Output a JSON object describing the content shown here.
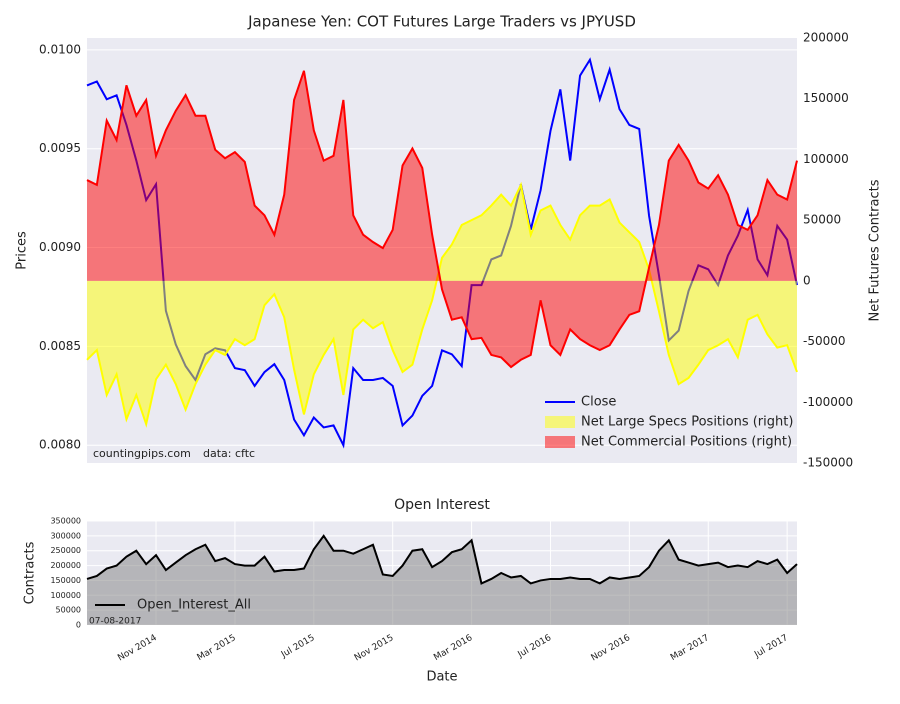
{
  "chart_data": [
    {
      "type": "line",
      "title": "Japanese Yen: COT Futures Large Traders vs JPYUSD",
      "ylabel": "Prices",
      "y2label": "Net Futures Contracts",
      "ylim": [
        0.00791,
        0.01006
      ],
      "yticks": [
        {
          "value": 0.008,
          "label": "0.0080"
        },
        0.0085,
        {
          "value": 0.009,
          "label": "0.0090"
        },
        0.0095,
        {
          "value": 0.01,
          "label": "0.0100"
        }
      ],
      "y2lim": [
        -150000,
        200000
      ],
      "y2ticks": [
        -150000,
        -100000,
        -50000,
        0,
        50000,
        100000,
        150000,
        200000
      ],
      "grid": true,
      "legend": "lower right",
      "annotations": [
        "countingpips.com",
        "data: cftc"
      ],
      "series": [
        {
          "name": "Close",
          "color": "#0000ff",
          "axis": "y",
          "values": [
            0.00982,
            0.00984,
            0.00975,
            0.00977,
            0.00962,
            0.00944,
            0.00924,
            0.00932,
            0.00868,
            0.00851,
            0.0084,
            0.00833,
            0.00846,
            0.00849,
            0.00848,
            0.00839,
            0.00838,
            0.0083,
            0.00837,
            0.00841,
            0.00833,
            0.00813,
            0.00805,
            0.00814,
            0.00809,
            0.0081,
            0.008,
            0.00839,
            0.00833,
            0.00833,
            0.00834,
            0.0083,
            0.0081,
            0.00815,
            0.00825,
            0.0083,
            0.00848,
            0.00846,
            0.0084,
            0.00881,
            0.00881,
            0.00894,
            0.00896,
            0.00911,
            0.00932,
            0.00909,
            0.00929,
            0.00959,
            0.0098,
            0.00944,
            0.00987,
            0.00995,
            0.00975,
            0.0099,
            0.0097,
            0.00962,
            0.0096,
            0.00916,
            0.00886,
            0.00853,
            0.00858,
            0.00878,
            0.00891,
            0.00889,
            0.00881,
            0.00896,
            0.00906,
            0.00919,
            0.00894,
            0.00886,
            0.00911,
            0.00904,
            0.00881
          ]
        },
        {
          "name": "Net Large Specs Positions (right)",
          "color": "#ffff00",
          "fill_color": "#ffff00",
          "axis": "y2",
          "values": [
            -65000,
            -57000,
            -94000,
            -77000,
            -114000,
            -94000,
            -118000,
            -81000,
            -69000,
            -85000,
            -106000,
            -85000,
            -69000,
            -57000,
            -61000,
            -48000,
            -53000,
            -48000,
            -20000,
            -11000,
            -30000,
            -73000,
            -110000,
            -77000,
            -61000,
            -48000,
            -94000,
            -40000,
            -32000,
            -39000,
            -34000,
            -57000,
            -75000,
            -69000,
            -40000,
            -16000,
            19000,
            30000,
            46000,
            50000,
            54000,
            62000,
            71000,
            62000,
            79000,
            38000,
            58000,
            62000,
            46000,
            34000,
            54000,
            62000,
            62000,
            67000,
            48000,
            40000,
            32000,
            9000,
            -25000,
            -61000,
            -85000,
            -80000,
            -69000,
            -57000,
            -53000,
            -48000,
            -63000,
            -32000,
            -28000,
            -44000,
            -55000,
            -53000,
            -75000
          ]
        },
        {
          "name": "Net Commercial Positions (right)",
          "color": "#ff0000",
          "fill_color": "#ff0000",
          "axis": "y2",
          "values": [
            83000,
            79000,
            132000,
            116000,
            161000,
            136000,
            149000,
            103000,
            124000,
            140000,
            153000,
            136000,
            136000,
            108000,
            101000,
            106000,
            98000,
            62000,
            54000,
            38000,
            71000,
            149000,
            173000,
            124000,
            99000,
            103000,
            149000,
            54000,
            38000,
            32000,
            27000,
            42000,
            95000,
            109000,
            93000,
            38000,
            -7000,
            -32000,
            -30000,
            -48000,
            -47000,
            -61000,
            -63000,
            -71000,
            -65000,
            -61000,
            -16000,
            -53000,
            -61000,
            -40000,
            -48000,
            -53000,
            -57000,
            -53000,
            -40000,
            -28000,
            -25000,
            11000,
            46000,
            99000,
            112000,
            99000,
            81000,
            76000,
            87000,
            71000,
            46000,
            42000,
            54000,
            83000,
            71000,
            67000,
            99000
          ]
        }
      ]
    },
    {
      "type": "area",
      "title": "Open Interest",
      "ylabel": "Contracts",
      "xlabel": "Date",
      "ylim": [
        0,
        350000
      ],
      "yticks": [
        0,
        50000,
        100000,
        150000,
        200000,
        250000,
        300000,
        350000
      ],
      "grid": true,
      "legend": "lower left",
      "annotations": [
        "07-08-2017"
      ],
      "categories": [
        null,
        null,
        null,
        null,
        null,
        null,
        null,
        "Nov 2014",
        null,
        null,
        null,
        null,
        null,
        null,
        null,
        "Mar 2015",
        null,
        null,
        null,
        null,
        null,
        null,
        null,
        "Jul 2015",
        null,
        null,
        null,
        null,
        null,
        null,
        null,
        "Nov 2015",
        null,
        null,
        null,
        null,
        null,
        null,
        null,
        "Mar 2016",
        null,
        null,
        null,
        null,
        null,
        null,
        null,
        "Jul 2016",
        null,
        null,
        null,
        null,
        null,
        null,
        null,
        "Nov 2016",
        null,
        null,
        null,
        null,
        null,
        null,
        null,
        "Mar 2017",
        null,
        null,
        null,
        null,
        null,
        null,
        null,
        "Jul 2017",
        null
      ],
      "series": [
        {
          "name": "Open_Interest_All",
          "color": "#000000",
          "fill_color": "#808080",
          "values": [
            155000,
            165000,
            190000,
            200000,
            230000,
            250000,
            205000,
            235000,
            185000,
            210000,
            235000,
            255000,
            270000,
            215000,
            225000,
            205000,
            200000,
            200000,
            230000,
            180000,
            185000,
            185000,
            190000,
            255000,
            300000,
            250000,
            250000,
            240000,
            255000,
            270000,
            170000,
            165000,
            200000,
            250000,
            255000,
            195000,
            215000,
            245000,
            255000,
            285000,
            140000,
            155000,
            175000,
            160000,
            165000,
            140000,
            150000,
            155000,
            155000,
            160000,
            155000,
            155000,
            140000,
            160000,
            155000,
            160000,
            165000,
            195000,
            250000,
            285000,
            220000,
            210000,
            200000,
            205000,
            210000,
            195000,
            200000,
            195000,
            215000,
            205000,
            220000,
            175000,
            205000
          ]
        }
      ]
    }
  ]
}
